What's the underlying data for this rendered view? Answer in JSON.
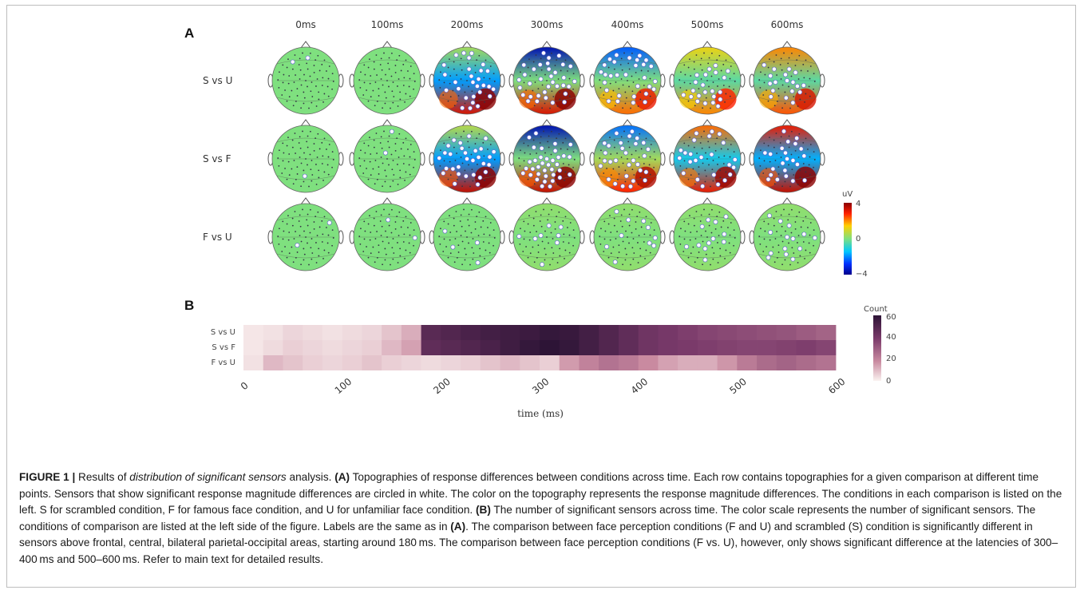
{
  "panel_a": {
    "label": "A",
    "time_points": [
      "0ms",
      "100ms",
      "200ms",
      "300ms",
      "400ms",
      "500ms",
      "600ms"
    ],
    "rows": [
      "S vs U",
      "S vs F",
      "F vs U"
    ],
    "colorbar": {
      "unit": "uV",
      "max_label": "4",
      "mid_label": "0",
      "min_label": "−4"
    }
  },
  "panel_b": {
    "label": "B",
    "xlabel": "time (ms)",
    "colorbar": {
      "title": "Count",
      "ticks": [
        "60",
        "40",
        "20",
        "0"
      ]
    }
  },
  "chart_data": {
    "type": "heatmap",
    "xlabel": "time (ms)",
    "x_ticks": [
      "0",
      "100",
      "200",
      "300",
      "400",
      "500",
      "600"
    ],
    "xlim": [
      0,
      600
    ],
    "rows": [
      "S vs U",
      "S vs F",
      "F vs U"
    ],
    "color_scale": {
      "title": "Count",
      "range": [
        0,
        60
      ],
      "ticks": [
        0,
        20,
        40,
        60
      ]
    },
    "time_ms": [
      0,
      20,
      40,
      60,
      80,
      100,
      120,
      140,
      160,
      180,
      200,
      220,
      240,
      260,
      280,
      300,
      320,
      340,
      360,
      380,
      400,
      420,
      440,
      460,
      480,
      500,
      520,
      540,
      560,
      580
    ],
    "counts": [
      [
        2,
        3,
        5,
        4,
        3,
        4,
        5,
        8,
        12,
        48,
        50,
        52,
        54,
        55,
        56,
        58,
        57,
        54,
        50,
        46,
        42,
        40,
        38,
        36,
        35,
        34,
        33,
        32,
        30,
        28
      ],
      [
        2,
        4,
        6,
        5,
        4,
        5,
        6,
        10,
        14,
        46,
        48,
        50,
        52,
        55,
        58,
        60,
        58,
        54,
        50,
        46,
        42,
        40,
        39,
        38,
        37,
        36,
        36,
        37,
        38,
        36
      ],
      [
        3,
        10,
        8,
        6,
        5,
        6,
        8,
        6,
        5,
        4,
        5,
        6,
        8,
        10,
        8,
        6,
        15,
        20,
        24,
        22,
        18,
        14,
        12,
        12,
        16,
        22,
        26,
        28,
        26,
        24
      ]
    ]
  },
  "caption": {
    "figure_label": "FIGURE 1 |",
    "p1": " Results of ",
    "p2_italic": "distribution of significant sensors",
    "p3": " analysis. ",
    "p4_bold": "(A)",
    "p5": " Topographies of response differences between conditions across time. Each row contains topographies for a given comparison at different time points. Sensors that show significant response magnitude differences are circled in white. The color on the topography represents the response magnitude differences. The conditions in each comparison is listed on the left. S for scrambled condition, F for famous face condition, and U for unfamiliar face condition. ",
    "p6_bold": "(B)",
    "p7": " The number of significant sensors across time. The color scale represents the number of significant sensors. The conditions of comparison are listed at the left side of the figure. Labels are the same as in ",
    "p8_bold": "(A)",
    "p9": ". The comparison between face perception conditions (F and U) and scrambled (S) condition is significantly different in sensors above frontal, central, bilateral parietal-occipital areas, starting around 180 ms. The comparison between face perception conditions (F vs. U), however, only shows significant difference at the latencies of 300–400 ms and 500–600 ms. Refer to main text for detailed results."
  }
}
